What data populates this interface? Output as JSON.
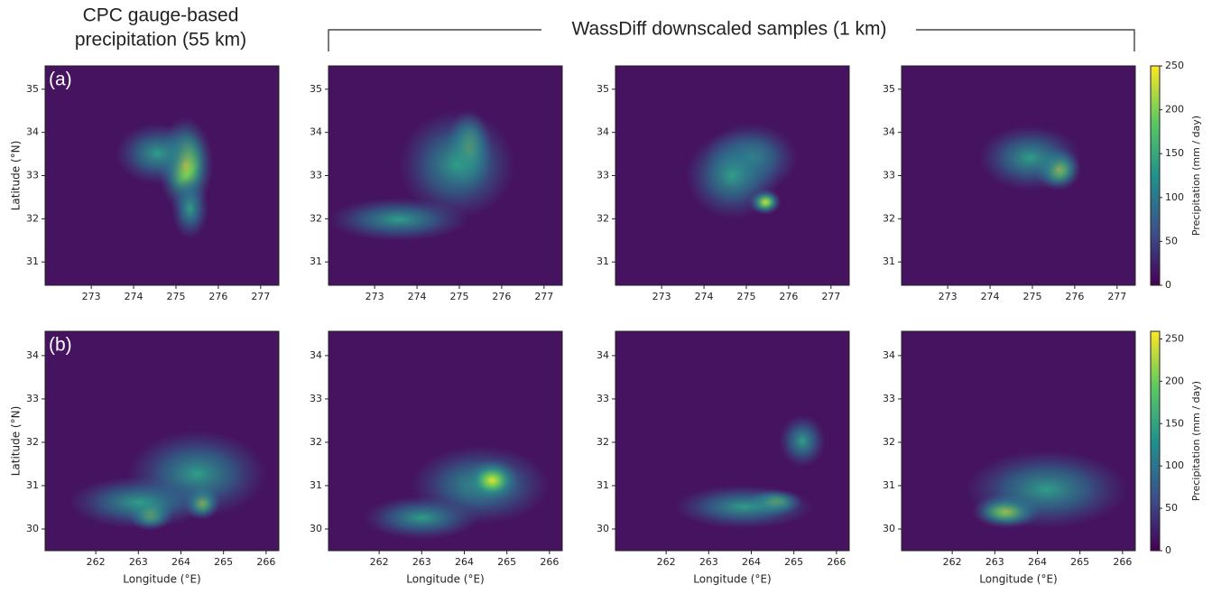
{
  "chart_data": {
    "type": "heatmap",
    "left_title": [
      "CPC gauge-based",
      "precipitation (55 km)"
    ],
    "right_title": "WassDiff downscaled samples (1 km)",
    "colormap": "viridis",
    "ylabel": "Latitude (°N)",
    "xlabel": "Longitude (°E)",
    "colorbar_label": "Precipitation (mm / day)",
    "rows": [
      {
        "label": "(a)",
        "xlim": [
          271.91,
          277.43
        ],
        "xticks": [
          273,
          274,
          275,
          276,
          277
        ],
        "ylim": [
          30.46,
          35.54
        ],
        "yticks": [
          31,
          32,
          33,
          34,
          35
        ],
        "clim": [
          0,
          250
        ],
        "cticks": [
          0,
          50,
          100,
          150,
          200,
          250
        ],
        "show_xlabel": false
      },
      {
        "label": "(b)",
        "xlim": [
          260.81,
          266.3
        ],
        "xticks": [
          262,
          263,
          264,
          265,
          266
        ],
        "ylim": [
          29.5,
          34.56
        ],
        "yticks": [
          30,
          31,
          32,
          33,
          34
        ],
        "clim": [
          0,
          259
        ],
        "cticks": [
          0,
          50,
          100,
          150,
          200,
          250
        ],
        "show_xlabel": true
      }
    ]
  }
}
